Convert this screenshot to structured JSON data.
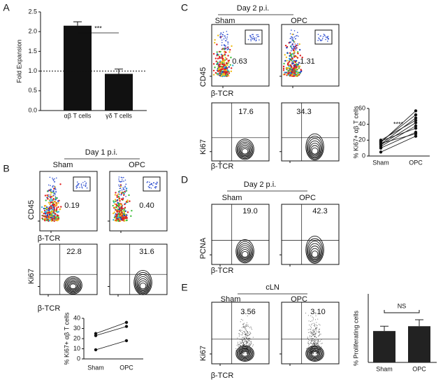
{
  "figure": {
    "A": {
      "label": "A"
    },
    "B": {
      "label": "B",
      "header": "Day 1 p.i.",
      "columns": [
        "Sham",
        "OPC"
      ],
      "row1": {
        "y_label": "CD45",
        "x_label": "β-TCR",
        "gates": [
          "0.19",
          "0.40"
        ]
      },
      "row2": {
        "y_label": "Ki67",
        "x_label": "β-TCR",
        "gates": [
          "22.8",
          "31.6"
        ]
      }
    },
    "C": {
      "label": "C",
      "header": "Day 2 p.i.",
      "columns": [
        "Sham",
        "OPC"
      ],
      "row1": {
        "y_label": "CD45",
        "x_label": "β-TCR",
        "gates": [
          "0.63",
          "1.31"
        ]
      },
      "row2": {
        "y_label": "Ki67",
        "x_label": "β-TCR",
        "gates": [
          "17.6",
          "34.3"
        ]
      }
    },
    "D": {
      "label": "D",
      "header": "Day 2 p.i.",
      "columns": [
        "Sham",
        "OPC"
      ],
      "row1": {
        "y_label": "PCNA",
        "x_label": "β-TCR",
        "gates": [
          "19.0",
          "42.3"
        ]
      }
    },
    "E": {
      "label": "E",
      "header": "cLN",
      "columns": [
        "Sham",
        "OPC"
      ],
      "row1": {
        "y_label": "Ki67",
        "x_label": "β-TCR",
        "gates": [
          "3.56",
          "3.10"
        ]
      }
    }
  },
  "chart_data": [
    {
      "type": "bar",
      "categories": [
        "αβ T cells",
        "γδ T cells"
      ],
      "values": [
        2.15,
        0.93
      ],
      "errors": [
        0.1,
        0.12
      ],
      "y_label": "Fold Expansion",
      "ylim": [
        0,
        2.5
      ],
      "yticks": [
        {
          "value": 0,
          "label": "0.0"
        },
        0.5,
        {
          "value": 1,
          "label": "1.0"
        },
        1.5,
        {
          "value": 2,
          "label": "2.0"
        },
        2.5
      ],
      "reference_line": 1,
      "annotation": "***",
      "color": "#111111"
    },
    {
      "type": "paired",
      "categories": [
        "Sham",
        "OPC"
      ],
      "y_label": "% Ki67+ αβ T cells",
      "ylim": [
        0,
        40
      ],
      "yticks": [
        0,
        10,
        20,
        30,
        40
      ],
      "color": "#111111",
      "series": [
        {
          "values": [
            25,
            36
          ]
        },
        {
          "values": [
            23,
            32
          ]
        },
        {
          "values": [
            9,
            18
          ]
        }
      ]
    },
    {
      "type": "paired",
      "categories": [
        "Sham",
        "OPC"
      ],
      "y_label": "% Ki67+ αβ T cells",
      "ylim": [
        0,
        60
      ],
      "yticks": [
        0,
        20,
        40,
        60
      ],
      "annotation": "****",
      "color": "#111111",
      "series": [
        {
          "values": [
            17,
            57
          ]
        },
        {
          "values": [
            18,
            52
          ]
        },
        {
          "values": [
            15,
            48
          ]
        },
        {
          "values": [
            20,
            45
          ]
        },
        {
          "values": [
            14,
            42
          ]
        },
        {
          "values": [
            12,
            38
          ]
        },
        {
          "values": [
            19,
            35
          ]
        },
        {
          "values": [
            10,
            30
          ]
        },
        {
          "values": [
            16,
            28
          ]
        },
        {
          "values": [
            5,
            25
          ]
        }
      ]
    },
    {
      "type": "bar",
      "categories": [
        "Sham",
        "OPC"
      ],
      "values": [
        3.9,
        4.5
      ],
      "errors": [
        0.6,
        0.8
      ],
      "y_label": "% Proliferating cells",
      "ylim": [
        0,
        6
      ],
      "annotation": "NS",
      "color": "#222222"
    }
  ]
}
